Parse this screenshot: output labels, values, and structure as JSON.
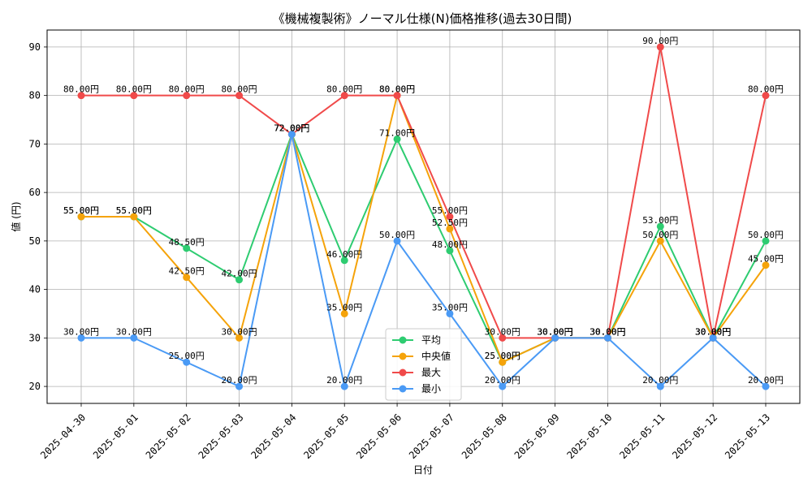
{
  "chart_data": {
    "type": "line",
    "title": "《機械複製術》ノーマル仕様(N)価格推移(過去30日間)",
    "xlabel": "日付",
    "ylabel": "値 (円)",
    "ylim": [
      16.5,
      93.5
    ],
    "yticks": [
      20,
      30,
      40,
      50,
      60,
      70,
      80,
      90
    ],
    "grid": true,
    "legend_position": "bottom-center",
    "label_suffix": "円",
    "categories": [
      "2025-04-30",
      "2025-05-01",
      "2025-05-02",
      "2025-05-03",
      "2025-05-04",
      "2025-05-05",
      "2025-05-06",
      "2025-05-07",
      "2025-05-08",
      "2025-05-09",
      "2025-05-10",
      "2025-05-11",
      "2025-05-12",
      "2025-05-13"
    ],
    "series": [
      {
        "name": "平均",
        "color": "#2ecc71",
        "values": [
          55,
          55,
          48.5,
          42,
          72,
          46,
          71,
          48,
          25,
          30,
          30,
          53,
          30,
          50
        ]
      },
      {
        "name": "中央値",
        "color": "#f5a30a",
        "values": [
          55,
          55,
          42.5,
          30,
          72,
          35,
          80,
          52.5,
          25,
          30,
          30,
          50,
          30,
          45
        ]
      },
      {
        "name": "最大",
        "color": "#f04a4a",
        "values": [
          80,
          80,
          80,
          80,
          72,
          80,
          80,
          55,
          30,
          30,
          30,
          90,
          30,
          80
        ]
      },
      {
        "name": "最小",
        "color": "#4a9af5",
        "values": [
          30,
          30,
          25,
          20,
          72,
          20,
          50,
          35,
          20,
          30,
          30,
          20,
          30,
          20
        ]
      }
    ]
  }
}
